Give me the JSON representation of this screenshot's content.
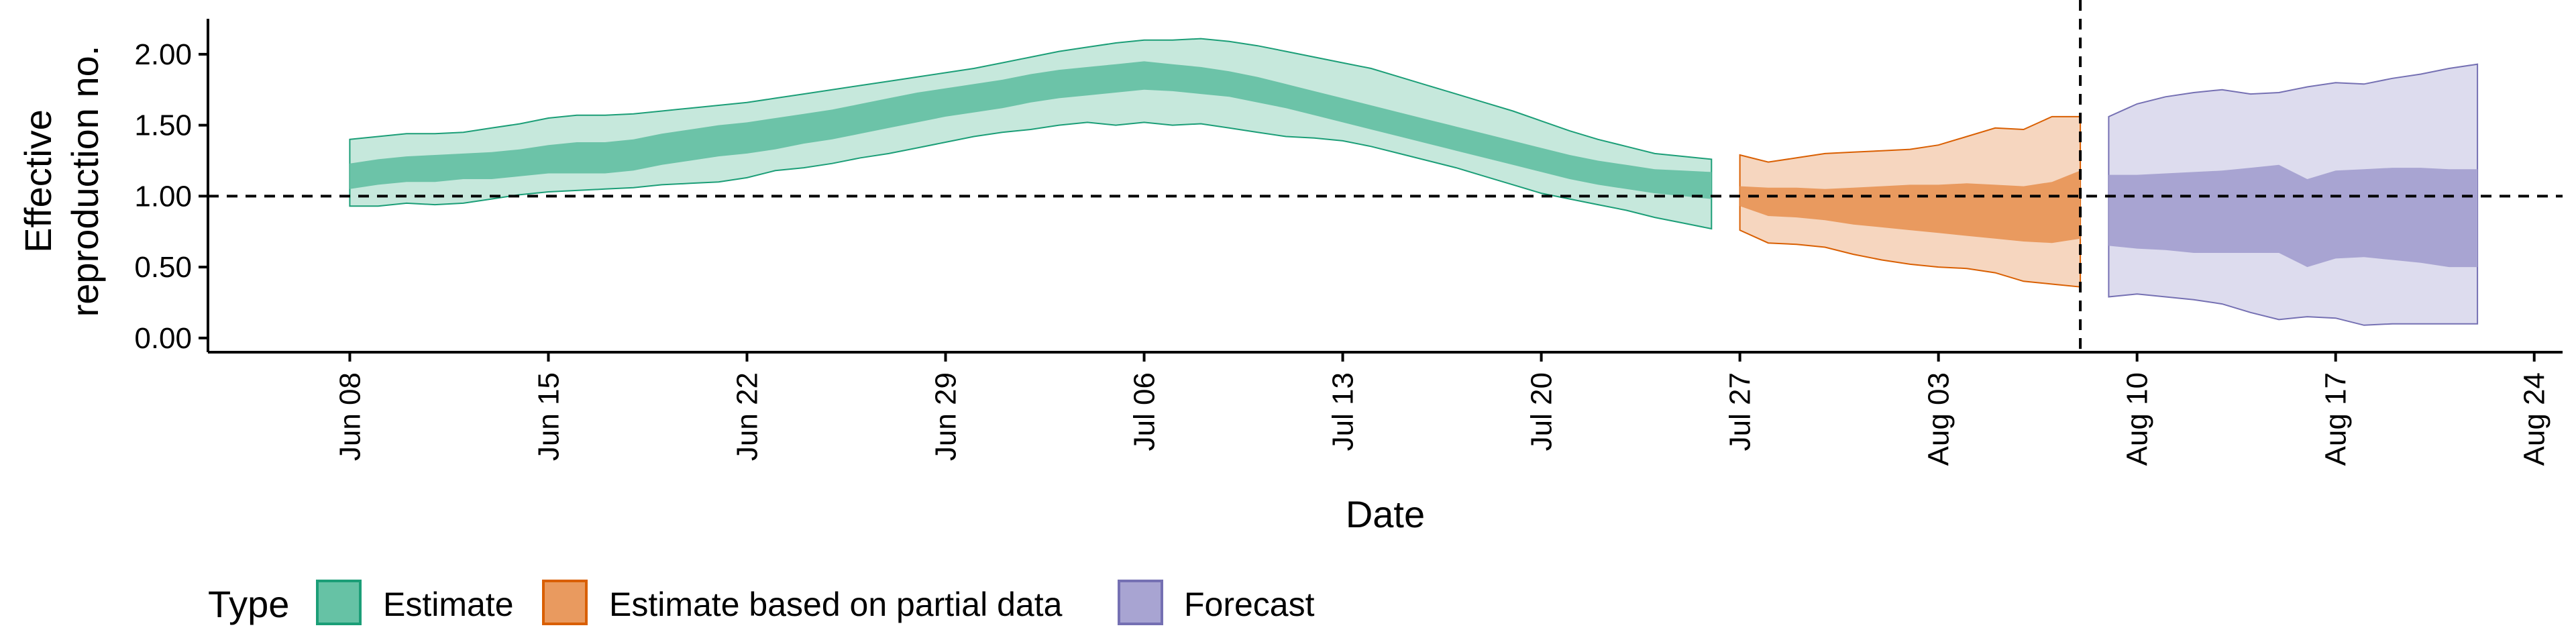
{
  "chart_data": {
    "type": "area",
    "xlabel": "Date",
    "ylabel": [
      "Effective",
      "reproduction no."
    ],
    "ylim": [
      -0.1,
      2.25
    ],
    "y_ticks": [
      0.0,
      0.5,
      1.0,
      1.5,
      2.0
    ],
    "y_tick_labels": [
      "0.00",
      "0.50",
      "1.00",
      "1.50",
      "2.00"
    ],
    "x_range": [
      "2020-06-03",
      "2020-08-25"
    ],
    "x_ticks": [
      "2020-06-08",
      "2020-06-15",
      "2020-06-22",
      "2020-06-29",
      "2020-07-06",
      "2020-07-13",
      "2020-07-20",
      "2020-07-27",
      "2020-08-03",
      "2020-08-10",
      "2020-08-17",
      "2020-08-24"
    ],
    "x_tick_labels": [
      "Jun 08",
      "Jun 15",
      "Jun 22",
      "Jun 29",
      "Jul 06",
      "Jul 13",
      "Jul 20",
      "Jul 27",
      "Aug 03",
      "Aug 10",
      "Aug 17",
      "Aug 24"
    ],
    "reference_line_y": 1.0,
    "forecast_start": "2020-08-08",
    "legend": {
      "title": "Type",
      "position": "bottom",
      "items": [
        {
          "label": "Estimate",
          "fill": "#66c2a5",
          "border": "#1b9e77"
        },
        {
          "label": "Estimate based on partial data",
          "fill": "#e99a5f",
          "border": "#d95f02"
        },
        {
          "label": "Forecast",
          "fill": "#a8a4d2",
          "border": "#7570b3"
        }
      ]
    },
    "series": [
      {
        "name": "Estimate",
        "color": "#1b9e77",
        "outer_fill": "#c6e8dc",
        "inner_fill": "#6cc3a8",
        "dates": [
          "2020-06-08",
          "2020-06-09",
          "2020-06-10",
          "2020-06-11",
          "2020-06-12",
          "2020-06-13",
          "2020-06-14",
          "2020-06-15",
          "2020-06-16",
          "2020-06-17",
          "2020-06-18",
          "2020-06-19",
          "2020-06-20",
          "2020-06-21",
          "2020-06-22",
          "2020-06-23",
          "2020-06-24",
          "2020-06-25",
          "2020-06-26",
          "2020-06-27",
          "2020-06-28",
          "2020-06-29",
          "2020-06-30",
          "2020-07-01",
          "2020-07-02",
          "2020-07-03",
          "2020-07-04",
          "2020-07-05",
          "2020-07-06",
          "2020-07-07",
          "2020-07-08",
          "2020-07-09",
          "2020-07-10",
          "2020-07-11",
          "2020-07-12",
          "2020-07-13",
          "2020-07-14",
          "2020-07-15",
          "2020-07-16",
          "2020-07-17",
          "2020-07-18",
          "2020-07-19",
          "2020-07-20",
          "2020-07-21",
          "2020-07-22",
          "2020-07-23",
          "2020-07-24",
          "2020-07-25",
          "2020-07-26"
        ],
        "lower_90": [
          0.93,
          0.93,
          0.95,
          0.94,
          0.95,
          0.98,
          1.01,
          1.03,
          1.04,
          1.05,
          1.06,
          1.08,
          1.09,
          1.1,
          1.13,
          1.18,
          1.2,
          1.23,
          1.27,
          1.3,
          1.34,
          1.38,
          1.42,
          1.45,
          1.47,
          1.5,
          1.52,
          1.5,
          1.52,
          1.5,
          1.51,
          1.48,
          1.45,
          1.42,
          1.41,
          1.39,
          1.35,
          1.3,
          1.25,
          1.2,
          1.14,
          1.08,
          1.02,
          0.98,
          0.94,
          0.9,
          0.85,
          0.81,
          0.77
        ],
        "lower_50": [
          1.05,
          1.08,
          1.1,
          1.1,
          1.12,
          1.12,
          1.14,
          1.16,
          1.16,
          1.16,
          1.18,
          1.22,
          1.25,
          1.28,
          1.3,
          1.33,
          1.37,
          1.4,
          1.44,
          1.48,
          1.52,
          1.56,
          1.59,
          1.62,
          1.66,
          1.69,
          1.71,
          1.73,
          1.75,
          1.74,
          1.72,
          1.7,
          1.66,
          1.62,
          1.57,
          1.52,
          1.47,
          1.42,
          1.37,
          1.32,
          1.27,
          1.22,
          1.17,
          1.12,
          1.08,
          1.05,
          1.02,
          1.0,
          0.98
        ],
        "upper_50": [
          1.23,
          1.26,
          1.28,
          1.29,
          1.3,
          1.31,
          1.33,
          1.36,
          1.38,
          1.38,
          1.4,
          1.44,
          1.47,
          1.5,
          1.52,
          1.55,
          1.58,
          1.61,
          1.65,
          1.69,
          1.73,
          1.76,
          1.79,
          1.82,
          1.86,
          1.89,
          1.91,
          1.93,
          1.95,
          1.93,
          1.91,
          1.88,
          1.84,
          1.79,
          1.74,
          1.69,
          1.64,
          1.59,
          1.54,
          1.49,
          1.44,
          1.39,
          1.34,
          1.29,
          1.25,
          1.22,
          1.19,
          1.18,
          1.17
        ],
        "upper_90": [
          1.4,
          1.42,
          1.44,
          1.44,
          1.45,
          1.48,
          1.51,
          1.55,
          1.57,
          1.57,
          1.58,
          1.6,
          1.62,
          1.64,
          1.66,
          1.69,
          1.72,
          1.75,
          1.78,
          1.81,
          1.84,
          1.87,
          1.9,
          1.94,
          1.98,
          2.02,
          2.05,
          2.08,
          2.1,
          2.1,
          2.11,
          2.09,
          2.06,
          2.02,
          1.98,
          1.94,
          1.9,
          1.84,
          1.78,
          1.72,
          1.66,
          1.6,
          1.53,
          1.46,
          1.4,
          1.35,
          1.3,
          1.28,
          1.26
        ]
      },
      {
        "name": "Estimate based on partial data",
        "color": "#d95f02",
        "outer_fill": "#f6d6bf",
        "inner_fill": "#e99a5f",
        "dates": [
          "2020-07-27",
          "2020-07-28",
          "2020-07-29",
          "2020-07-30",
          "2020-07-31",
          "2020-08-01",
          "2020-08-02",
          "2020-08-03",
          "2020-08-04",
          "2020-08-05",
          "2020-08-06",
          "2020-08-07",
          "2020-08-08"
        ],
        "lower_90": [
          0.76,
          0.67,
          0.66,
          0.64,
          0.59,
          0.55,
          0.52,
          0.5,
          0.49,
          0.46,
          0.4,
          0.38,
          0.36
        ],
        "lower_50": [
          0.93,
          0.86,
          0.85,
          0.83,
          0.8,
          0.78,
          0.76,
          0.74,
          0.72,
          0.7,
          0.68,
          0.67,
          0.7
        ],
        "upper_50": [
          1.07,
          1.06,
          1.06,
          1.05,
          1.06,
          1.07,
          1.08,
          1.08,
          1.09,
          1.08,
          1.07,
          1.1,
          1.18
        ],
        "upper_90": [
          1.29,
          1.24,
          1.27,
          1.3,
          1.31,
          1.32,
          1.33,
          1.36,
          1.42,
          1.48,
          1.47,
          1.56,
          1.56
        ]
      },
      {
        "name": "Forecast",
        "color": "#7570b3",
        "outer_fill": "#dddcee",
        "inner_fill": "#a8a4d2",
        "dates": [
          "2020-08-09",
          "2020-08-10",
          "2020-08-11",
          "2020-08-12",
          "2020-08-13",
          "2020-08-14",
          "2020-08-15",
          "2020-08-16",
          "2020-08-17",
          "2020-08-18",
          "2020-08-19",
          "2020-08-20",
          "2020-08-21",
          "2020-08-22"
        ],
        "lower_90": [
          0.29,
          0.31,
          0.29,
          0.27,
          0.24,
          0.18,
          0.13,
          0.15,
          0.14,
          0.09,
          0.1,
          0.1,
          0.1,
          0.1
        ],
        "lower_50": [
          0.65,
          0.63,
          0.62,
          0.6,
          0.6,
          0.6,
          0.6,
          0.5,
          0.56,
          0.57,
          0.55,
          0.53,
          0.5,
          0.5
        ],
        "upper_50": [
          1.15,
          1.15,
          1.16,
          1.17,
          1.18,
          1.2,
          1.22,
          1.12,
          1.18,
          1.19,
          1.2,
          1.2,
          1.19,
          1.19
        ],
        "upper_90": [
          1.56,
          1.65,
          1.7,
          1.73,
          1.75,
          1.72,
          1.73,
          1.77,
          1.8,
          1.79,
          1.83,
          1.86,
          1.9,
          1.93
        ]
      }
    ]
  }
}
